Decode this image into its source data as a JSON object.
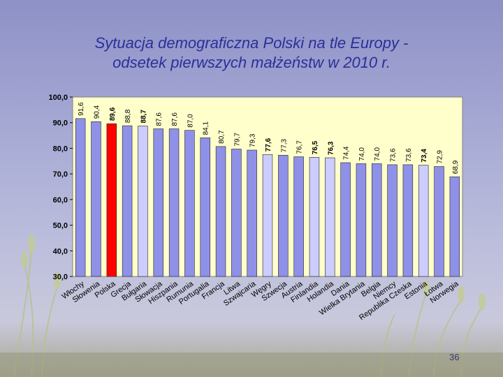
{
  "title": {
    "line1": "Sytuacja demograficzna Polski na tle Europy -",
    "line2": "odsetek pierwszych małżeństw w 2010 r."
  },
  "page_number": "36",
  "colors": {
    "plot_background": "#ffffcc",
    "bar_default": "#8f91e8",
    "bar_highlight": "#ff0000",
    "bar_light": "#ccccff",
    "title_color": "#2b2f9a"
  },
  "chart_data": {
    "type": "bar",
    "title": "",
    "xlabel": "",
    "ylabel": "",
    "ylim": [
      30,
      100
    ],
    "yticks": [
      "30,0",
      "40,0",
      "50,0",
      "60,0",
      "70,0",
      "80,0",
      "90,0",
      "100,0"
    ],
    "ytick_values": [
      30,
      40,
      50,
      60,
      70,
      80,
      90,
      100
    ],
    "grid": false,
    "legend": "none",
    "categories": [
      "Włochy",
      "Słowenia",
      "Polska",
      "Grecja",
      "Bułgaria",
      "Słowacja",
      "Hiszpania",
      "Rumunia",
      "Portugalia",
      "Francja",
      "Litwa",
      "Szwajcaria",
      "Węgry",
      "Szwecja",
      "Austria",
      "Finlandia",
      "Holandia",
      "Dania",
      "Wielka Brytania",
      "Belgia",
      "Niemcy",
      "Republika Czeska",
      "Estonia",
      "Łotwa",
      "Norwegia"
    ],
    "values": [
      91.6,
      90.4,
      89.6,
      88.8,
      88.7,
      87.6,
      87.6,
      87.0,
      84.1,
      80.7,
      79.7,
      79.3,
      77.6,
      77.3,
      76.7,
      76.5,
      76.3,
      74.4,
      74.0,
      74.0,
      73.6,
      73.6,
      73.4,
      72.9,
      68.9
    ],
    "value_labels": [
      "91,6",
      "90,4",
      "89,6",
      "88,8",
      "88,7",
      "87,6",
      "87,6",
      "87,0",
      "84,1",
      "80,7",
      "79,7",
      "79,3",
      "77,6",
      "77,3",
      "76,7",
      "76,5",
      "76,3",
      "74,4",
      "74,0",
      "74,0",
      "73,6",
      "73,6",
      "73,4",
      "72,9",
      "68,9"
    ],
    "highlight_index": 2,
    "light_indices": [
      4,
      12,
      15,
      16,
      22
    ]
  }
}
